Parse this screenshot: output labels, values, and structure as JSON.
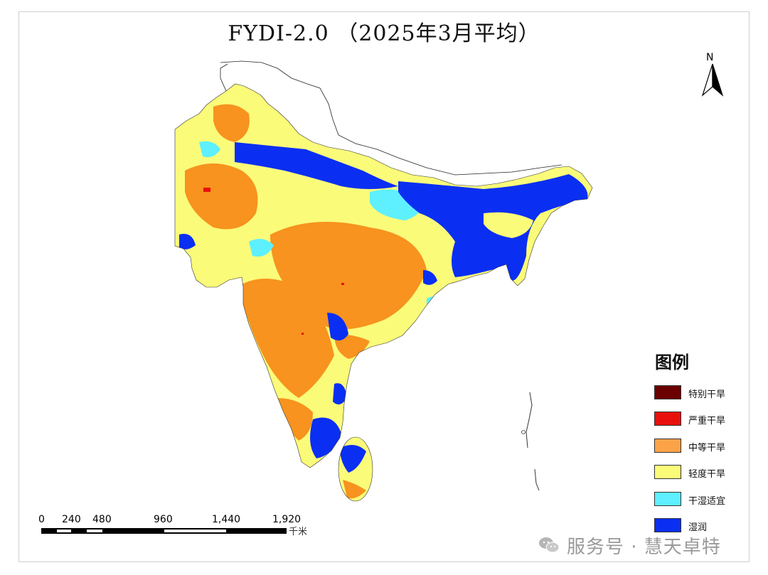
{
  "title": "FYDI-2.0 （2025年3月平均）",
  "north_arrow": {
    "letter": "N"
  },
  "legend": {
    "title": "图例",
    "items": [
      {
        "label": "特别干旱",
        "color": "#6b0000"
      },
      {
        "label": "严重干旱",
        "color": "#e8100c"
      },
      {
        "label": "中等干旱",
        "color": "#fca348"
      },
      {
        "label": "轻度干旱",
        "color": "#fbfb7a"
      },
      {
        "label": "干湿适宜",
        "color": "#5ef0ff"
      },
      {
        "label": "湿润",
        "color": "#0a2ff2"
      }
    ]
  },
  "scale_bar": {
    "ticks": [
      "0",
      "240",
      "480",
      "960",
      "1,440",
      "1,920"
    ],
    "unit": "千米"
  },
  "watermark": {
    "text": "服务号 · 慧天卓特",
    "icon": "wechat-icon"
  },
  "colors": {
    "orange": "#f7931e",
    "yellow": "#fbfb7a",
    "cyan": "#5ef0ff",
    "blue": "#0a2ff2",
    "red": "#e8100c",
    "darkred": "#6b0000"
  }
}
